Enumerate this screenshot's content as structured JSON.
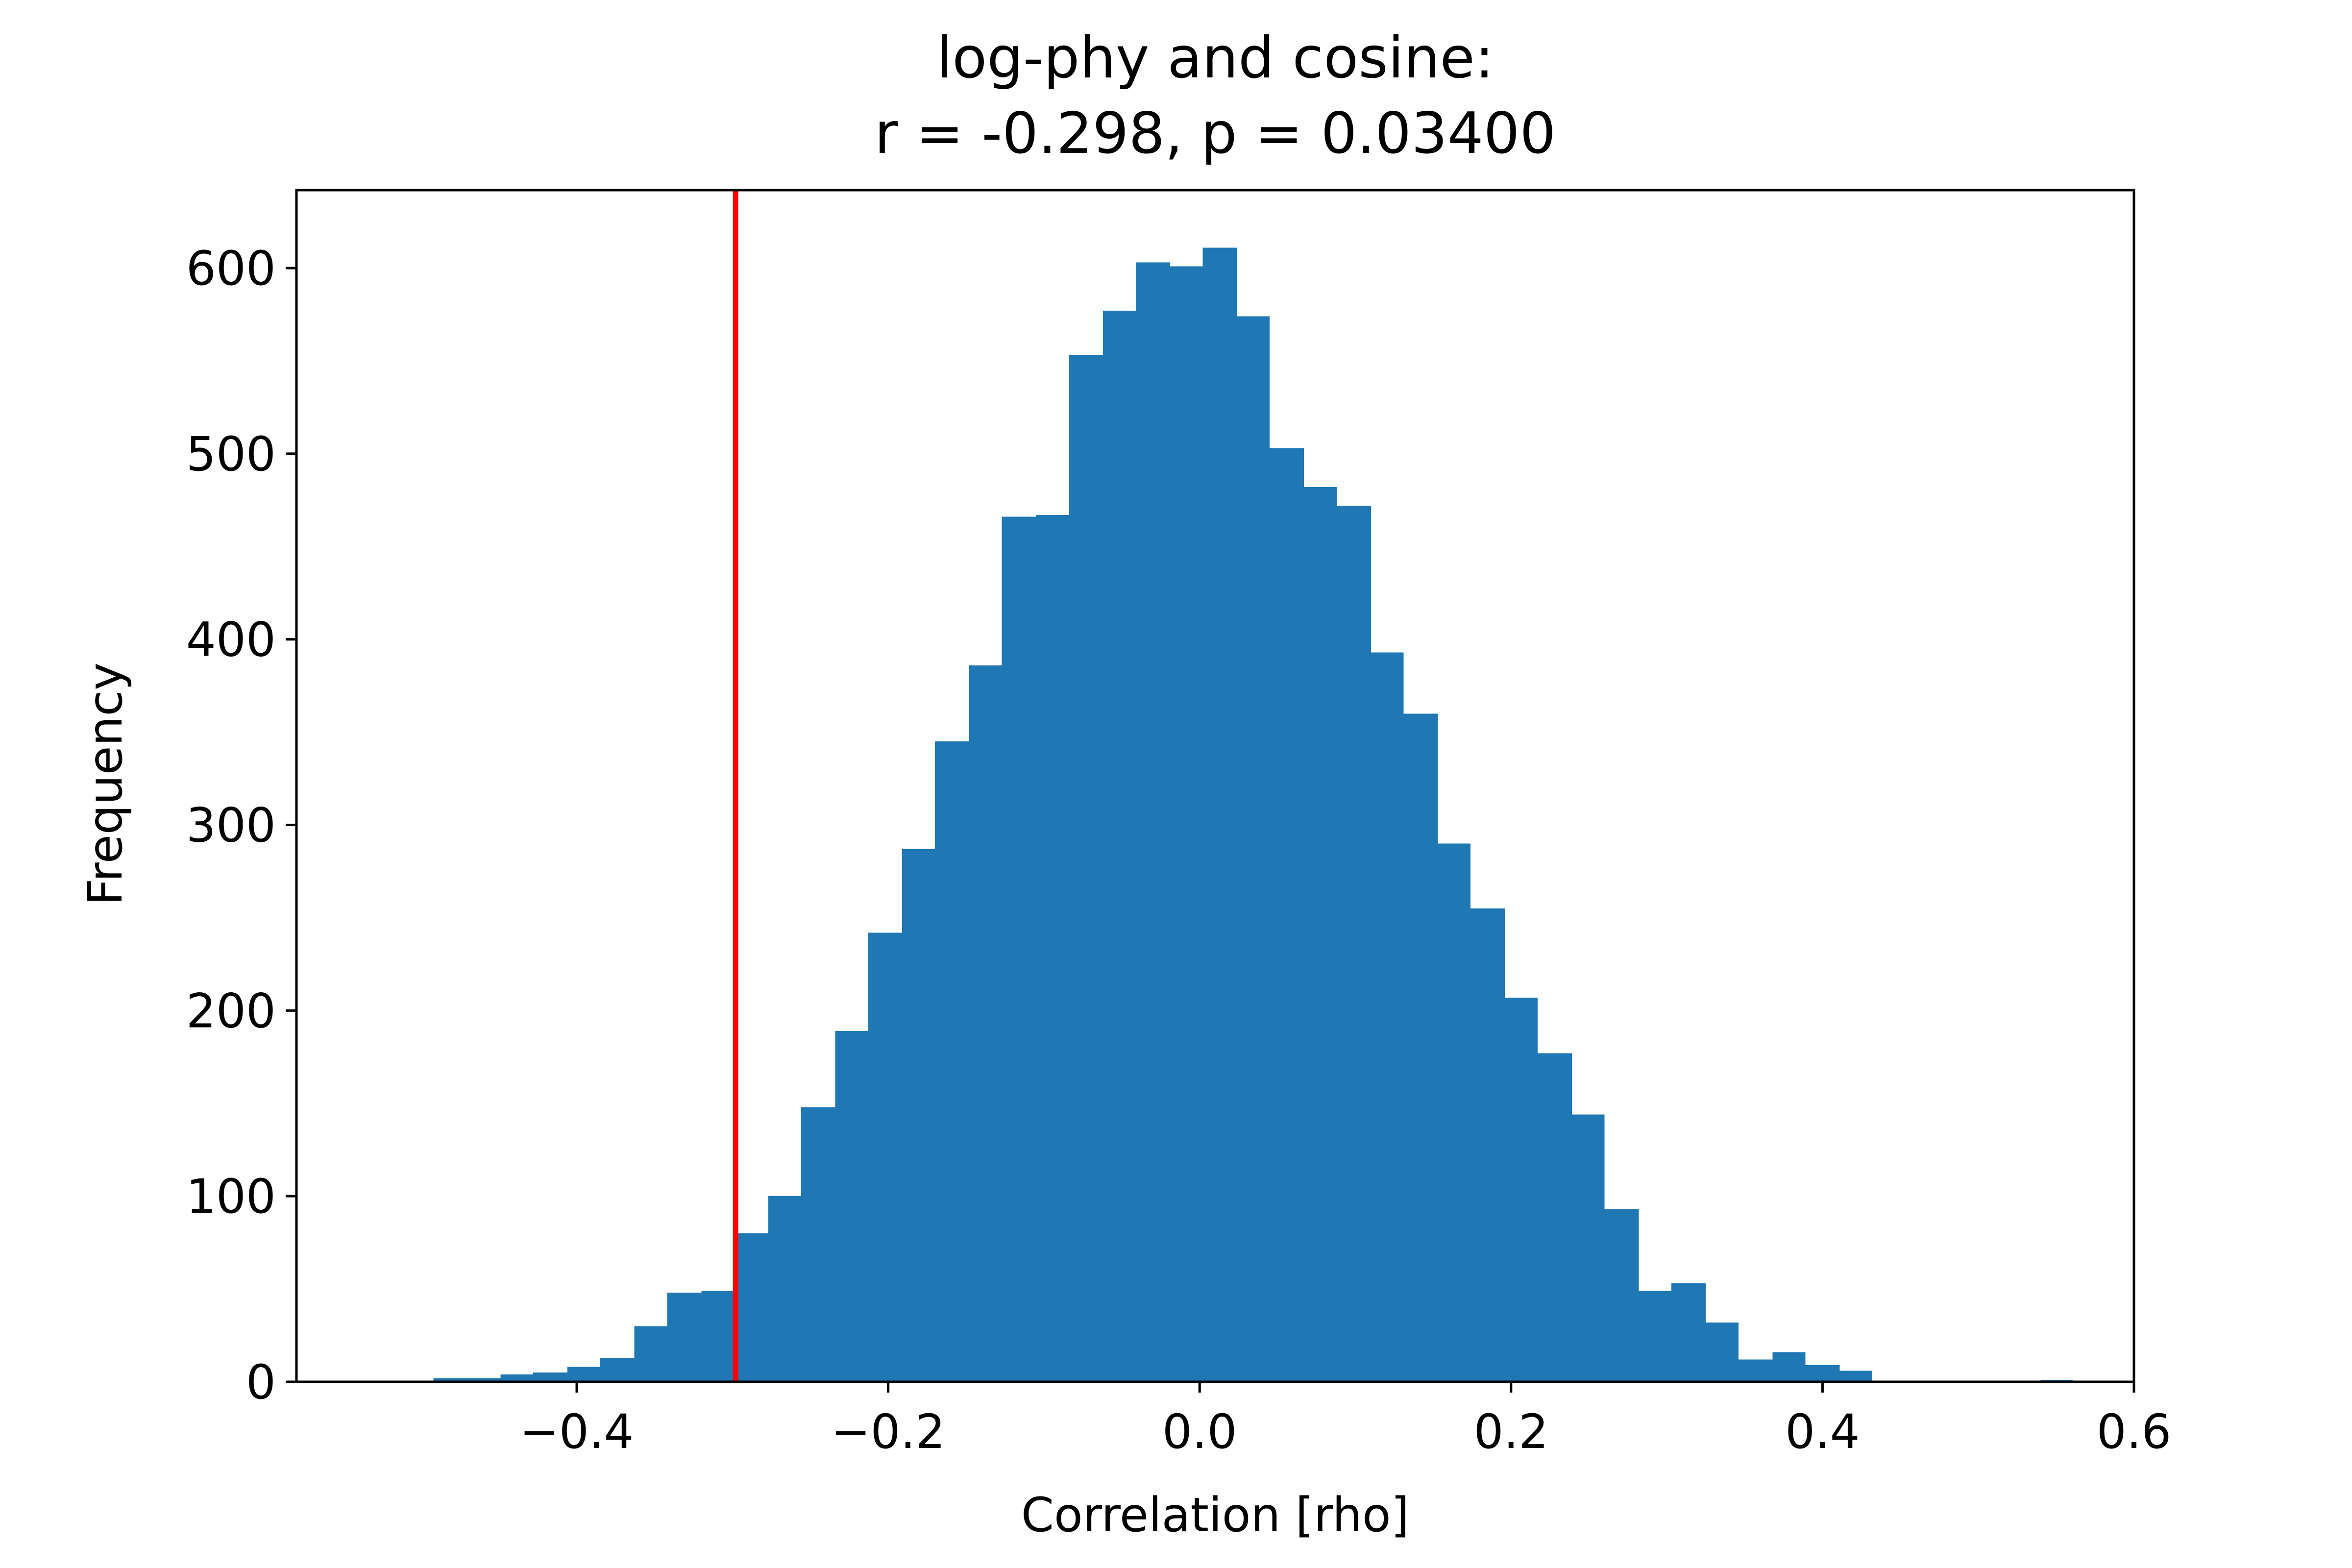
{
  "chart_data": {
    "type": "bar",
    "title": "log-phy and cosine:",
    "subtitle": "r = -0.298, p = 0.03400",
    "xlabel": "Correlation [rho]",
    "ylabel": "Frequency",
    "xlim": [
      -0.58,
      0.6
    ],
    "ylim": [
      0,
      642
    ],
    "xticks": [
      -0.4,
      -0.2,
      0.0,
      0.2,
      0.4,
      0.6
    ],
    "xtick_labels": [
      "−0.4",
      "−0.2",
      "0.0",
      "0.2",
      "0.4",
      "0.6"
    ],
    "yticks": [
      0,
      100,
      200,
      300,
      400,
      500,
      600
    ],
    "ytick_labels": [
      "0",
      "100",
      "200",
      "300",
      "400",
      "500",
      "600"
    ],
    "bar_color": "#1f77b4",
    "line_color": "#ff0000",
    "observed_r": -0.298,
    "grid": false,
    "bins": [
      {
        "x0": -0.492,
        "x1": -0.471,
        "count": 2
      },
      {
        "x0": -0.471,
        "x1": -0.449,
        "count": 2
      },
      {
        "x0": -0.449,
        "x1": -0.428,
        "count": 4
      },
      {
        "x0": -0.428,
        "x1": -0.406,
        "count": 5
      },
      {
        "x0": -0.406,
        "x1": -0.385,
        "count": 8
      },
      {
        "x0": -0.385,
        "x1": -0.363,
        "count": 13
      },
      {
        "x0": -0.363,
        "x1": -0.342,
        "count": 30
      },
      {
        "x0": -0.342,
        "x1": -0.32,
        "count": 48
      },
      {
        "x0": -0.32,
        "x1": -0.299,
        "count": 49
      },
      {
        "x0": -0.299,
        "x1": -0.277,
        "count": 80
      },
      {
        "x0": -0.277,
        "x1": -0.256,
        "count": 100
      },
      {
        "x0": -0.256,
        "x1": -0.234,
        "count": 148
      },
      {
        "x0": -0.234,
        "x1": -0.213,
        "count": 189
      },
      {
        "x0": -0.213,
        "x1": -0.191,
        "count": 242
      },
      {
        "x0": -0.191,
        "x1": -0.17,
        "count": 287
      },
      {
        "x0": -0.17,
        "x1": -0.148,
        "count": 345
      },
      {
        "x0": -0.148,
        "x1": -0.127,
        "count": 386
      },
      {
        "x0": -0.127,
        "x1": -0.105,
        "count": 466
      },
      {
        "x0": -0.105,
        "x1": -0.084,
        "count": 467
      },
      {
        "x0": -0.084,
        "x1": -0.062,
        "count": 553
      },
      {
        "x0": -0.062,
        "x1": -0.041,
        "count": 577
      },
      {
        "x0": -0.041,
        "x1": -0.019,
        "count": 603
      },
      {
        "x0": -0.019,
        "x1": 0.002,
        "count": 601
      },
      {
        "x0": 0.002,
        "x1": 0.024,
        "count": 611
      },
      {
        "x0": 0.024,
        "x1": 0.045,
        "count": 574
      },
      {
        "x0": 0.045,
        "x1": 0.067,
        "count": 503
      },
      {
        "x0": 0.067,
        "x1": 0.088,
        "count": 482
      },
      {
        "x0": 0.088,
        "x1": 0.11,
        "count": 472
      },
      {
        "x0": 0.11,
        "x1": 0.131,
        "count": 393
      },
      {
        "x0": 0.131,
        "x1": 0.153,
        "count": 360
      },
      {
        "x0": 0.153,
        "x1": 0.174,
        "count": 290
      },
      {
        "x0": 0.174,
        "x1": 0.196,
        "count": 255
      },
      {
        "x0": 0.196,
        "x1": 0.217,
        "count": 207
      },
      {
        "x0": 0.217,
        "x1": 0.239,
        "count": 177
      },
      {
        "x0": 0.239,
        "x1": 0.26,
        "count": 144
      },
      {
        "x0": 0.26,
        "x1": 0.282,
        "count": 93
      },
      {
        "x0": 0.282,
        "x1": 0.303,
        "count": 49
      },
      {
        "x0": 0.303,
        "x1": 0.325,
        "count": 53
      },
      {
        "x0": 0.325,
        "x1": 0.346,
        "count": 32
      },
      {
        "x0": 0.346,
        "x1": 0.368,
        "count": 12
      },
      {
        "x0": 0.368,
        "x1": 0.389,
        "count": 16
      },
      {
        "x0": 0.389,
        "x1": 0.411,
        "count": 9
      },
      {
        "x0": 0.411,
        "x1": 0.432,
        "count": 6
      },
      {
        "x0": 0.432,
        "x1": 0.454,
        "count": 0
      },
      {
        "x0": 0.454,
        "x1": 0.475,
        "count": 0
      },
      {
        "x0": 0.475,
        "x1": 0.497,
        "count": 0
      },
      {
        "x0": 0.497,
        "x1": 0.518,
        "count": 0
      },
      {
        "x0": 0.518,
        "x1": 0.54,
        "count": 0
      },
      {
        "x0": 0.54,
        "x1": 0.561,
        "count": 1
      }
    ]
  }
}
